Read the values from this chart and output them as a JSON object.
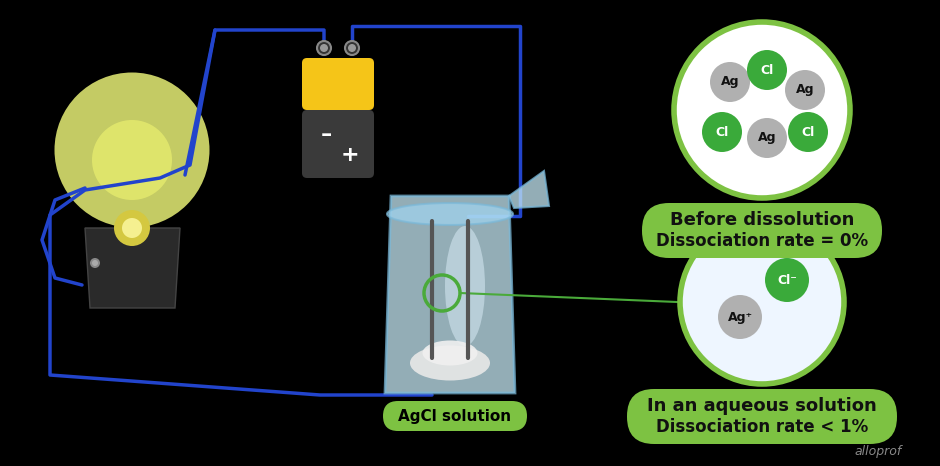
{
  "bg_color": "#000000",
  "green_label_color": "#7dc242",
  "green_dark_color": "#4aaa3a",
  "ag_color": "#b0b0b0",
  "cl_color": "#3aaa3a",
  "wire_color": "#2244cc",
  "title1_line1": "Before dissolution",
  "title1_line2": "Dissociation rate = 0%",
  "title2_line1": "In an aqueous solution",
  "title2_line2": "Dissociation rate < 1%",
  "label_agcl": "AgCl solution",
  "watermark": "alloprof",
  "circle1_bg": "#ffffff",
  "circle1_border": "#7dc242",
  "circle2_bg": "#eef6ff",
  "circle2_border": "#7dc242",
  "label_bg": "#7dc242",
  "beaker_color": "#b8dff0",
  "bulb_glow": "#e8f076",
  "battery_yellow": "#f5c518",
  "battery_dark": "#3a3a3a"
}
